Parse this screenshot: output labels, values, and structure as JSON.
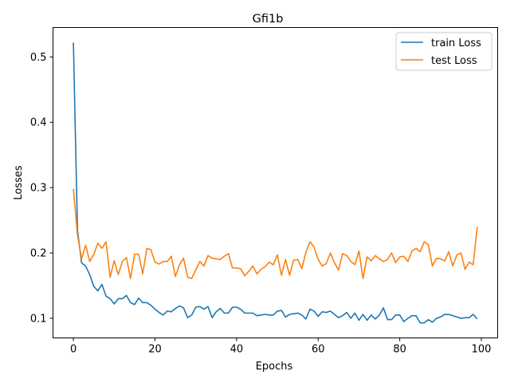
{
  "chart_data": {
    "type": "line",
    "title": "Gfi1b",
    "xlabel": "Epochs",
    "ylabel": "Losses",
    "xlim": [
      -5,
      104
    ],
    "ylim": [
      0.07,
      0.545
    ],
    "xticks": [
      0,
      20,
      40,
      60,
      80,
      100
    ],
    "yticks": [
      0.1,
      0.2,
      0.3,
      0.4,
      0.5
    ],
    "xtick_labels": [
      "0",
      "20",
      "40",
      "60",
      "80",
      "100"
    ],
    "ytick_labels": [
      "0.1",
      "0.2",
      "0.3",
      "0.4",
      "0.5"
    ],
    "grid": false,
    "legend_position": "top-right",
    "x": [
      0,
      1,
      2,
      3,
      4,
      5,
      6,
      7,
      8,
      9,
      10,
      11,
      12,
      13,
      14,
      15,
      16,
      17,
      18,
      19,
      20,
      21,
      22,
      23,
      24,
      25,
      26,
      27,
      28,
      29,
      30,
      31,
      32,
      33,
      34,
      35,
      36,
      37,
      38,
      39,
      40,
      41,
      42,
      43,
      44,
      45,
      46,
      47,
      48,
      49,
      50,
      51,
      52,
      53,
      54,
      55,
      56,
      57,
      58,
      59,
      60,
      61,
      62,
      63,
      64,
      65,
      66,
      67,
      68,
      69,
      70,
      71,
      72,
      73,
      74,
      75,
      76,
      77,
      78,
      79,
      80,
      81,
      82,
      83,
      84,
      85,
      86,
      87,
      88,
      89,
      90,
      91,
      92,
      93,
      94,
      95,
      96,
      97,
      98,
      99
    ],
    "series": [
      {
        "name": "train Loss",
        "color": "#1f77b4",
        "values": [
          0.522,
          0.235,
          0.185,
          0.18,
          0.167,
          0.149,
          0.142,
          0.152,
          0.134,
          0.13,
          0.122,
          0.13,
          0.13,
          0.135,
          0.124,
          0.121,
          0.131,
          0.124,
          0.124,
          0.12,
          0.114,
          0.109,
          0.105,
          0.111,
          0.11,
          0.115,
          0.119,
          0.116,
          0.101,
          0.105,
          0.117,
          0.118,
          0.114,
          0.118,
          0.101,
          0.11,
          0.115,
          0.108,
          0.108,
          0.117,
          0.117,
          0.114,
          0.108,
          0.108,
          0.108,
          0.104,
          0.105,
          0.106,
          0.105,
          0.105,
          0.111,
          0.112,
          0.102,
          0.106,
          0.107,
          0.108,
          0.105,
          0.099,
          0.114,
          0.111,
          0.103,
          0.11,
          0.109,
          0.111,
          0.106,
          0.101,
          0.104,
          0.109,
          0.1,
          0.108,
          0.097,
          0.106,
          0.097,
          0.105,
          0.099,
          0.105,
          0.116,
          0.098,
          0.098,
          0.105,
          0.105,
          0.095,
          0.1,
          0.104,
          0.104,
          0.093,
          0.093,
          0.098,
          0.094,
          0.1,
          0.102,
          0.106,
          0.106,
          0.104,
          0.102,
          0.1,
          0.101,
          0.101,
          0.106,
          0.099
        ]
      },
      {
        "name": "test Loss",
        "color": "#ff7f0e",
        "values": [
          0.298,
          0.228,
          0.191,
          0.212,
          0.187,
          0.198,
          0.215,
          0.207,
          0.217,
          0.163,
          0.188,
          0.167,
          0.187,
          0.193,
          0.161,
          0.198,
          0.198,
          0.168,
          0.207,
          0.205,
          0.186,
          0.183,
          0.187,
          0.187,
          0.195,
          0.164,
          0.182,
          0.192,
          0.163,
          0.161,
          0.174,
          0.187,
          0.18,
          0.196,
          0.192,
          0.191,
          0.19,
          0.195,
          0.199,
          0.177,
          0.177,
          0.176,
          0.165,
          0.172,
          0.18,
          0.168,
          0.175,
          0.179,
          0.186,
          0.182,
          0.197,
          0.166,
          0.19,
          0.166,
          0.189,
          0.19,
          0.176,
          0.201,
          0.217,
          0.209,
          0.19,
          0.18,
          0.184,
          0.2,
          0.185,
          0.174,
          0.199,
          0.196,
          0.187,
          0.182,
          0.203,
          0.161,
          0.194,
          0.188,
          0.196,
          0.191,
          0.187,
          0.19,
          0.2,
          0.185,
          0.194,
          0.195,
          0.187,
          0.203,
          0.207,
          0.202,
          0.217,
          0.213,
          0.18,
          0.192,
          0.191,
          0.188,
          0.202,
          0.18,
          0.197,
          0.2,
          0.175,
          0.186,
          0.182,
          0.24
        ]
      }
    ]
  }
}
